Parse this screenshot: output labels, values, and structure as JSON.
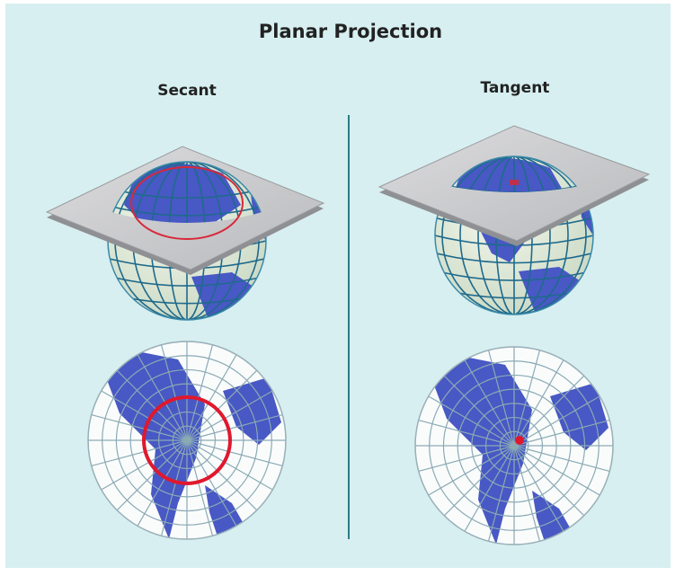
{
  "title": "Planar Projection",
  "panels": [
    {
      "label": "Secant"
    },
    {
      "label": "Tangent"
    }
  ]
}
